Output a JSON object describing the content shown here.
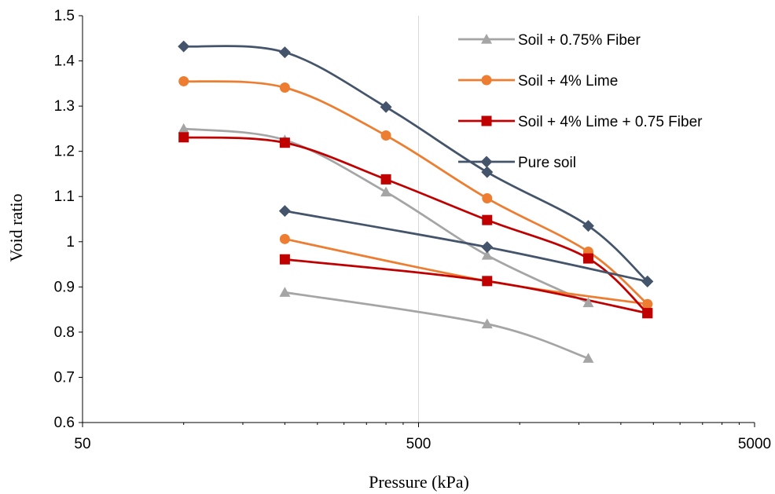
{
  "chart_data": {
    "type": "line",
    "title": "",
    "xlabel": "Pressure (kPa)",
    "ylabel": "Void ratio",
    "xscale": "log",
    "xlim": [
      50,
      5000
    ],
    "ylim": [
      0.6,
      1.5
    ],
    "xticks": [
      "50",
      "500",
      "5000"
    ],
    "yticks": [
      "0.6",
      "0.7",
      "0.8",
      "0.9",
      "1",
      "1.1",
      "1.2",
      "1.3",
      "1.4",
      "1.5"
    ],
    "grid": "vertical major gridlines only",
    "legend_position": "top-right",
    "series": [
      {
        "name": "Soil + 0.75% Fiber",
        "color": "#a5a5a5",
        "marker": "triangle",
        "loading": {
          "x": [
            100,
            200,
            400,
            800,
            1600
          ],
          "y": [
            1.25,
            1.225,
            1.11,
            0.97,
            0.865
          ]
        },
        "unloading": {
          "x": [
            200,
            800,
            1600
          ],
          "y": [
            0.888,
            0.818,
            0.742
          ]
        }
      },
      {
        "name": "Soil + 4% Lime",
        "color": "#ed7d31",
        "marker": "circle",
        "loading": {
          "x": [
            100,
            200,
            400,
            800,
            1600,
            2400
          ],
          "y": [
            1.355,
            1.341,
            1.235,
            1.096,
            0.978,
            0.862
          ]
        },
        "unloading": {
          "x": [
            200,
            800,
            2400
          ],
          "y": [
            1.006,
            0.913,
            0.862
          ]
        }
      },
      {
        "name": "Soil + 4% Lime + 0.75 Fiber",
        "color": "#c00000",
        "marker": "square",
        "loading": {
          "x": [
            100,
            200,
            400,
            800,
            1600,
            2400
          ],
          "y": [
            1.231,
            1.219,
            1.138,
            1.048,
            0.963,
            0.842
          ]
        },
        "unloading": {
          "x": [
            200,
            800,
            2400
          ],
          "y": [
            0.961,
            0.913,
            0.842
          ]
        }
      },
      {
        "name": "Pure soil",
        "color": "#44546a",
        "marker": "diamond",
        "loading": {
          "x": [
            100,
            200,
            400,
            800,
            1600,
            2400
          ],
          "y": [
            1.432,
            1.419,
            1.298,
            1.154,
            1.035,
            0.912
          ]
        },
        "unloading": {
          "x": [
            200,
            800,
            2400
          ],
          "y": [
            1.068,
            0.988,
            0.912
          ]
        }
      }
    ]
  }
}
